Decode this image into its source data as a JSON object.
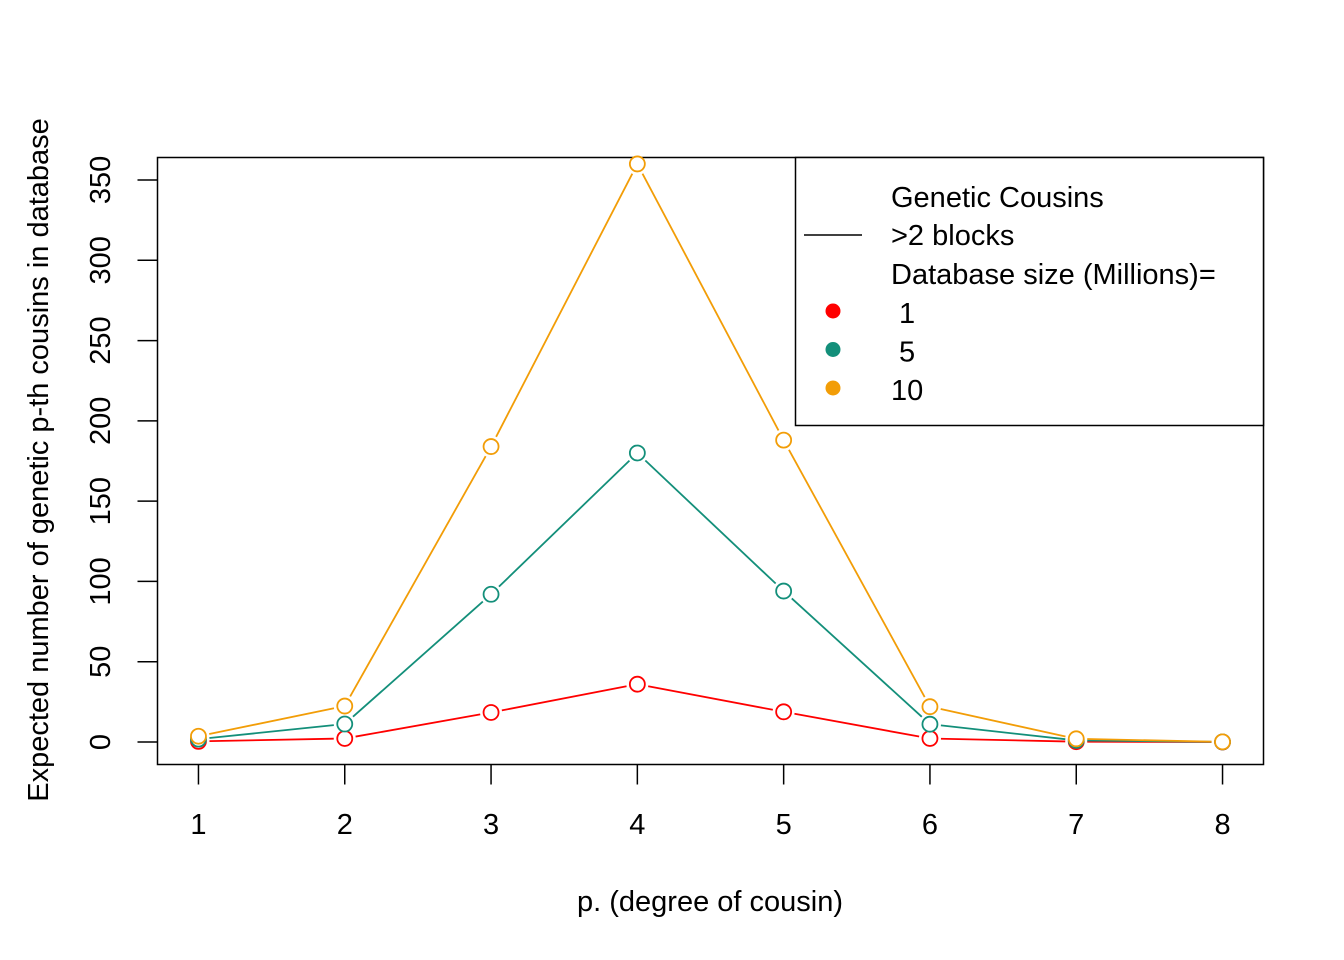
{
  "chart_data": {
    "type": "line",
    "title": "",
    "xlabel": "p. (degree of cousin)",
    "ylabel": "Expected number of genetic p-th cousins in database",
    "x": [
      1,
      2,
      3,
      4,
      5,
      6,
      7,
      8
    ],
    "xlim": [
      0.72,
      8.28
    ],
    "ylim": [
      -14,
      364
    ],
    "xticks": [
      "1",
      "2",
      "3",
      "4",
      "5",
      "6",
      "7",
      "8"
    ],
    "yticks": [
      "0",
      "50",
      "100",
      "150",
      "200",
      "250",
      "300",
      "350"
    ],
    "grid": false,
    "series": [
      {
        "name": " 1",
        "color": "#FF0000",
        "values": [
          0.4,
          2.2,
          18.4,
          36,
          18.8,
          2.2,
          0.2,
          0.01
        ]
      },
      {
        "name": " 5",
        "color": "#138F7A",
        "values": [
          1.8,
          11.2,
          92,
          180,
          94,
          11.1,
          1,
          0.05
        ]
      },
      {
        "name": "10",
        "color": "#F29D07",
        "values": [
          3.6,
          22.4,
          184,
          360,
          188,
          22,
          2,
          0.1
        ]
      }
    ],
    "legend": {
      "position": "top-right",
      "title": "Genetic Cousins",
      "line_label": ">2 blocks",
      "size_label": "Database size (Millions)="
    }
  }
}
